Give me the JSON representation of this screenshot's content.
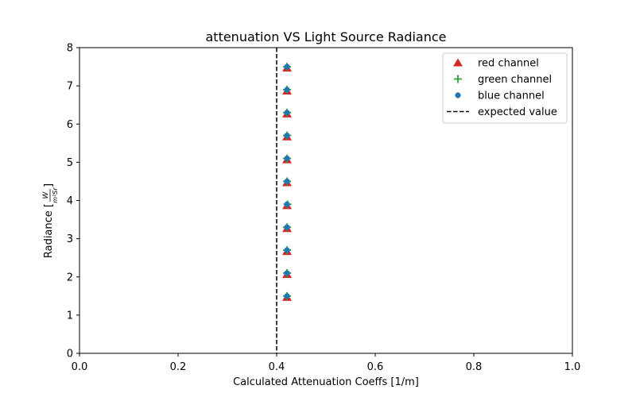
{
  "chart_data": {
    "type": "scatter",
    "title": "attenuation VS Light Source Radiance",
    "xlabel": "Calculated Attenuation Coeffs [1/m]",
    "ylabel": "Radiance [W/(m²Sr)]",
    "ylabel_prefix": "Radiance [",
    "ylabel_num": "W",
    "ylabel_den": "m²Sr",
    "ylabel_suffix": "]",
    "xlim": [
      0.0,
      1.0
    ],
    "ylim": [
      0,
      8
    ],
    "x_ticks": [
      "0.0",
      "0.2",
      "0.4",
      "0.6",
      "0.8",
      "1.0"
    ],
    "y_ticks": [
      "0",
      "1",
      "2",
      "3",
      "4",
      "5",
      "6",
      "7",
      "8"
    ],
    "grid": false,
    "legend_position": "top-right",
    "series": [
      {
        "name": "red channel",
        "marker": "triangle",
        "color": "#d62728",
        "x": [
          0.421,
          0.421,
          0.421,
          0.421,
          0.421,
          0.421,
          0.421,
          0.421,
          0.421,
          0.421,
          0.421
        ],
        "y": [
          1.5,
          2.1,
          2.7,
          3.3,
          3.9,
          4.5,
          5.1,
          5.7,
          6.3,
          6.9,
          7.5
        ]
      },
      {
        "name": "green channel",
        "marker": "plus",
        "color": "#2ca02c",
        "x": [
          0.421,
          0.421,
          0.421,
          0.421,
          0.422,
          0.421,
          0.421,
          0.421,
          0.421,
          0.421,
          0.421
        ],
        "y": [
          1.5,
          2.1,
          2.7,
          3.3,
          3.9,
          4.5,
          5.1,
          5.7,
          6.3,
          6.9,
          7.5
        ]
      },
      {
        "name": "blue channel",
        "marker": "circle",
        "color": "#1f77b4",
        "x": [
          0.421,
          0.421,
          0.421,
          0.421,
          0.421,
          0.421,
          0.421,
          0.421,
          0.421,
          0.421,
          0.421
        ],
        "y": [
          1.5,
          2.1,
          2.7,
          3.3,
          3.9,
          4.5,
          5.1,
          5.7,
          6.3,
          6.9,
          7.5
        ]
      }
    ],
    "reference_line": {
      "name": "expected value",
      "orientation": "vertical",
      "x": 0.4,
      "style": "dashed",
      "color": "#000000"
    }
  }
}
